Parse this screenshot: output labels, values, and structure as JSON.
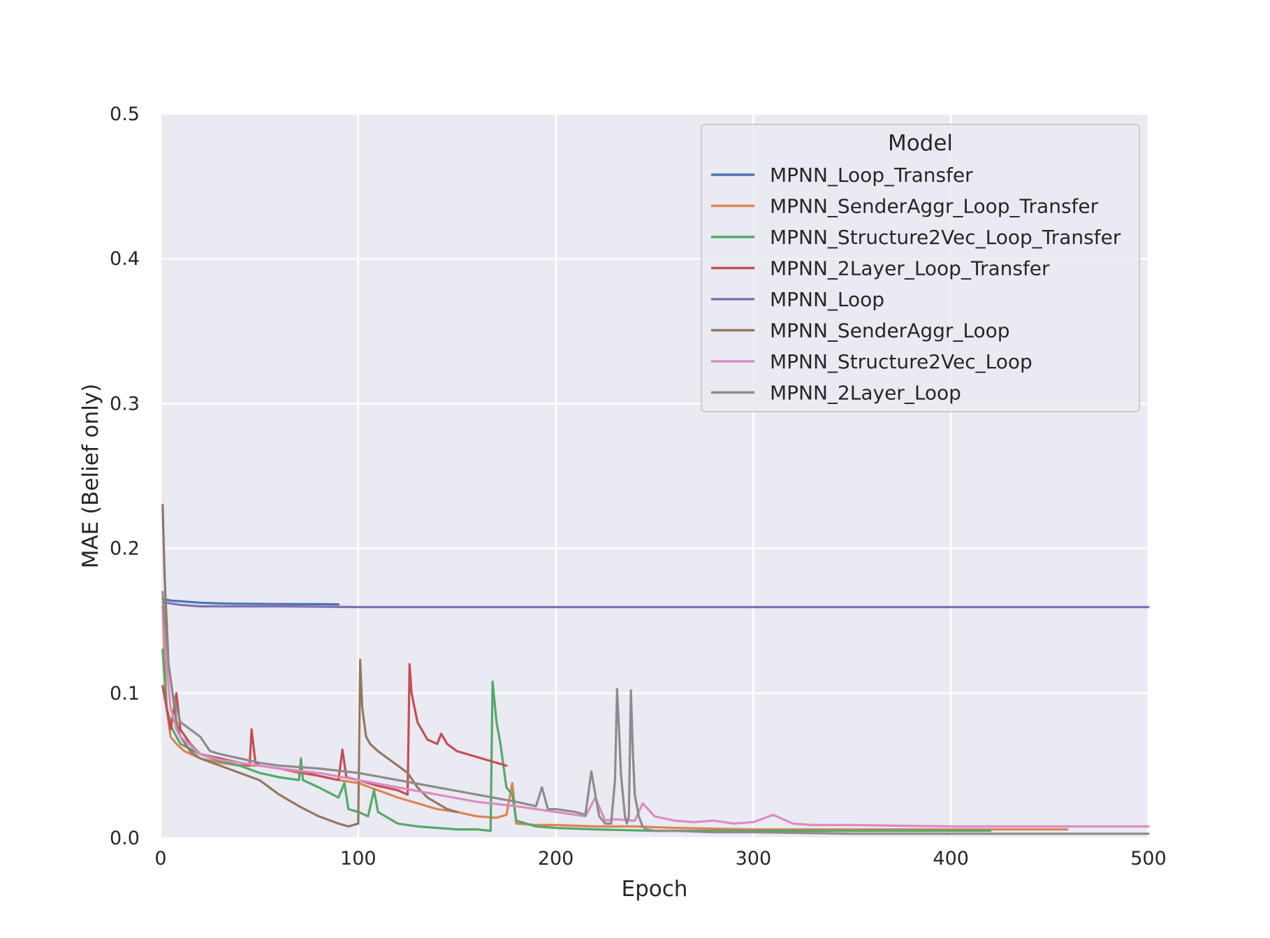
{
  "chart_data": {
    "type": "line",
    "xlabel": "Epoch",
    "ylabel": "MAE (Belief only)",
    "xlim": [
      0,
      500
    ],
    "ylim": [
      0,
      0.5
    ],
    "x_ticks": [
      "0",
      "100",
      "200",
      "300",
      "400",
      "500"
    ],
    "y_ticks": [
      "0.0",
      "0.1",
      "0.2",
      "0.3",
      "0.4",
      "0.5"
    ],
    "grid": true,
    "background_color": "#eaeaf2",
    "legend_title": "Model",
    "legend_position": "top-right",
    "series": [
      {
        "name": "MPNN_Loop_Transfer",
        "color": "#4c72b0",
        "x": [
          1,
          5,
          10,
          20,
          30,
          40,
          50,
          60,
          70,
          80,
          90
        ],
        "y": [
          0.165,
          0.164,
          0.1635,
          0.1625,
          0.162,
          0.1618,
          0.1617,
          0.1616,
          0.1615,
          0.1615,
          0.1614
        ]
      },
      {
        "name": "MPNN_SenderAggr_Loop_Transfer",
        "color": "#dd8452",
        "x": [
          1,
          3,
          5,
          8,
          12,
          20,
          30,
          40,
          50,
          60,
          70,
          80,
          90,
          100,
          110,
          120,
          130,
          140,
          150,
          160,
          170,
          175,
          178,
          180,
          190,
          200,
          220,
          240,
          260,
          300,
          350,
          400,
          459
        ],
        "y": [
          0.16,
          0.09,
          0.07,
          0.065,
          0.06,
          0.055,
          0.052,
          0.05,
          0.05,
          0.048,
          0.045,
          0.043,
          0.04,
          0.038,
          0.033,
          0.028,
          0.024,
          0.02,
          0.018,
          0.015,
          0.014,
          0.016,
          0.038,
          0.01,
          0.009,
          0.009,
          0.008,
          0.008,
          0.007,
          0.006,
          0.006,
          0.006,
          0.006
        ]
      },
      {
        "name": "MPNN_Structure2Vec_Loop_Transfer",
        "color": "#55a868",
        "x": [
          1,
          3,
          6,
          10,
          20,
          30,
          40,
          50,
          60,
          70,
          71,
          72,
          80,
          90,
          93,
          95,
          100,
          105,
          108,
          110,
          120,
          130,
          140,
          150,
          160,
          167,
          168,
          170,
          172,
          175,
          178,
          180,
          190,
          200,
          220,
          250,
          300,
          350,
          420
        ],
        "y": [
          0.13,
          0.09,
          0.075,
          0.065,
          0.058,
          0.053,
          0.05,
          0.045,
          0.042,
          0.04,
          0.055,
          0.04,
          0.035,
          0.028,
          0.038,
          0.02,
          0.018,
          0.015,
          0.033,
          0.018,
          0.01,
          0.008,
          0.007,
          0.006,
          0.006,
          0.005,
          0.108,
          0.08,
          0.065,
          0.035,
          0.03,
          0.012,
          0.008,
          0.007,
          0.006,
          0.005,
          0.005,
          0.005,
          0.005
        ]
      },
      {
        "name": "MPNN_2Layer_Loop_Transfer",
        "color": "#c44e52",
        "x": [
          1,
          3,
          5,
          8,
          10,
          15,
          20,
          30,
          40,
          45,
          46,
          48,
          50,
          60,
          70,
          80,
          90,
          92,
          94,
          100,
          110,
          120,
          125,
          126,
          127,
          130,
          135,
          140,
          142,
          145,
          150,
          160,
          170,
          175
        ],
        "y": [
          0.105,
          0.09,
          0.075,
          0.1,
          0.075,
          0.065,
          0.058,
          0.055,
          0.052,
          0.05,
          0.075,
          0.052,
          0.05,
          0.048,
          0.046,
          0.043,
          0.04,
          0.061,
          0.042,
          0.04,
          0.036,
          0.033,
          0.03,
          0.12,
          0.1,
          0.08,
          0.068,
          0.065,
          0.072,
          0.065,
          0.06,
          0.056,
          0.052,
          0.05
        ]
      },
      {
        "name": "MPNN_Loop",
        "color": "#8172b3",
        "x": [
          1,
          5,
          10,
          20,
          40,
          60,
          100,
          200,
          300,
          400,
          500
        ],
        "y": [
          0.163,
          0.162,
          0.161,
          0.16,
          0.16,
          0.16,
          0.1595,
          0.1595,
          0.1595,
          0.1595,
          0.1595
        ]
      },
      {
        "name": "MPNN_SenderAggr_Loop",
        "color": "#937860",
        "x": [
          1,
          2,
          4,
          6,
          8,
          10,
          15,
          20,
          30,
          40,
          50,
          60,
          70,
          80,
          90,
          95,
          100,
          101,
          102,
          104,
          106,
          110,
          115,
          120,
          125,
          130,
          135,
          140,
          145,
          150
        ],
        "y": [
          0.23,
          0.18,
          0.12,
          0.1,
          0.08,
          0.07,
          0.06,
          0.055,
          0.05,
          0.045,
          0.04,
          0.03,
          0.022,
          0.015,
          0.01,
          0.008,
          0.01,
          0.123,
          0.09,
          0.07,
          0.065,
          0.06,
          0.055,
          0.05,
          0.045,
          0.035,
          0.028,
          0.024,
          0.02,
          0.018
        ]
      },
      {
        "name": "MPNN_Structure2Vec_Loop",
        "color": "#da8bc3",
        "x": [
          1,
          3,
          5,
          8,
          10,
          20,
          30,
          40,
          50,
          60,
          80,
          100,
          120,
          140,
          160,
          180,
          200,
          210,
          215,
          220,
          225,
          230,
          240,
          244,
          250,
          260,
          270,
          280,
          290,
          300,
          310,
          320,
          330,
          350,
          400,
          450,
          500
        ],
        "y": [
          0.16,
          0.12,
          0.09,
          0.075,
          0.07,
          0.058,
          0.054,
          0.052,
          0.05,
          0.048,
          0.045,
          0.04,
          0.035,
          0.03,
          0.025,
          0.022,
          0.018,
          0.016,
          0.015,
          0.028,
          0.012,
          0.013,
          0.012,
          0.024,
          0.015,
          0.012,
          0.011,
          0.012,
          0.01,
          0.011,
          0.016,
          0.01,
          0.009,
          0.009,
          0.008,
          0.008,
          0.008
        ]
      },
      {
        "name": "MPNN_2Layer_Loop",
        "color": "#8c8c8c",
        "x": [
          1,
          2,
          4,
          6,
          8,
          10,
          15,
          20,
          25,
          30,
          40,
          50,
          60,
          80,
          100,
          120,
          140,
          160,
          180,
          190,
          193,
          196,
          200,
          210,
          215,
          218,
          220,
          222,
          225,
          228,
          230,
          231,
          232,
          233,
          235,
          236,
          237,
          238,
          239,
          240,
          242,
          244,
          246,
          250,
          260,
          280,
          300,
          350,
          400,
          450,
          500
        ],
        "y": [
          0.17,
          0.15,
          0.12,
          0.1,
          0.09,
          0.08,
          0.075,
          0.07,
          0.06,
          0.058,
          0.055,
          0.052,
          0.05,
          0.048,
          0.045,
          0.04,
          0.035,
          0.03,
          0.025,
          0.022,
          0.035,
          0.02,
          0.02,
          0.018,
          0.016,
          0.046,
          0.03,
          0.015,
          0.01,
          0.01,
          0.04,
          0.103,
          0.075,
          0.044,
          0.015,
          0.01,
          0.015,
          0.102,
          0.06,
          0.03,
          0.015,
          0.008,
          0.006,
          0.005,
          0.005,
          0.004,
          0.004,
          0.003,
          0.003,
          0.003,
          0.003
        ]
      }
    ]
  }
}
